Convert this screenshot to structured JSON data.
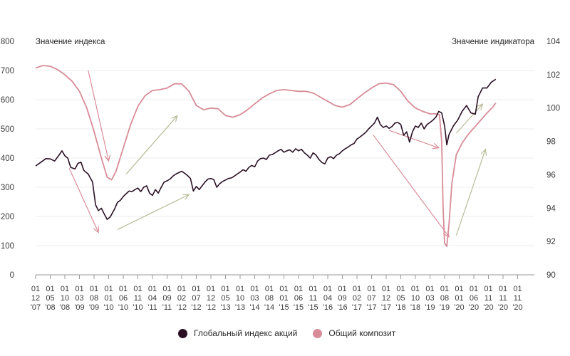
{
  "chart_data": {
    "type": "line",
    "left_axis": {
      "title": "Значение индекса",
      "ylim": [
        0,
        800
      ],
      "ticks": [
        "0",
        "100",
        "200",
        "300",
        "400",
        "500",
        "600",
        "700",
        "800"
      ]
    },
    "right_axis": {
      "title": "Значение индикатора",
      "ylim": [
        90,
        104
      ],
      "ticks": [
        "90",
        "92",
        "94",
        "96",
        "98",
        "100",
        "102",
        "104"
      ]
    },
    "x_tick_labels": [
      [
        "01",
        "12",
        "'07"
      ],
      [
        "01",
        "05",
        "'08"
      ],
      [
        "01",
        "10",
        "'08"
      ],
      [
        "01",
        "03",
        "'09"
      ],
      [
        "01",
        "08",
        "'09"
      ],
      [
        "01",
        "01",
        "'10"
      ],
      [
        "01",
        "06",
        "'10"
      ],
      [
        "01",
        "11",
        "'10"
      ],
      [
        "01",
        "04",
        "'11"
      ],
      [
        "01",
        "09",
        "'11"
      ],
      [
        "01",
        "02",
        "'12"
      ],
      [
        "01",
        "07",
        "'12"
      ],
      [
        "01",
        "12",
        "'12"
      ],
      [
        "01",
        "05",
        "'13"
      ],
      [
        "01",
        "10",
        "'13"
      ],
      [
        "01",
        "03",
        "'14"
      ],
      [
        "01",
        "08",
        "'14"
      ],
      [
        "01",
        "01",
        "'15"
      ],
      [
        "01",
        "06",
        "'15"
      ],
      [
        "01",
        "11",
        "'15"
      ],
      [
        "01",
        "04",
        "'16"
      ],
      [
        "01",
        "09",
        "'16"
      ],
      [
        "01",
        "02",
        "'17"
      ],
      [
        "01",
        "07",
        "'17"
      ],
      [
        "01",
        "12",
        "'17"
      ],
      [
        "01",
        "05",
        "'18"
      ],
      [
        "01",
        "10",
        "'18"
      ],
      [
        "01",
        "03",
        "'19"
      ],
      [
        "01",
        "08",
        "'19"
      ],
      [
        "01",
        "01",
        "'20"
      ],
      [
        "01",
        "06",
        "'20"
      ],
      [
        "01",
        "11",
        "'20"
      ],
      [
        "01",
        "11",
        "'20"
      ],
      [
        "01",
        "11",
        "'20"
      ]
    ],
    "grid": "horizontal",
    "legend_position": "bottom-center",
    "series": [
      {
        "name": "Глобальный индекс акций",
        "axis": "left",
        "color": "#2b1024",
        "points": [
          [
            0,
            373
          ],
          [
            0.4,
            387
          ],
          [
            0.7,
            398
          ],
          [
            1.0,
            397
          ],
          [
            1.3,
            390
          ],
          [
            1.6,
            410
          ],
          [
            1.8,
            425
          ],
          [
            2.0,
            408
          ],
          [
            2.2,
            400
          ],
          [
            2.4,
            368
          ],
          [
            2.7,
            363
          ],
          [
            2.9,
            382
          ],
          [
            3.1,
            386
          ],
          [
            3.3,
            358
          ],
          [
            3.6,
            345
          ],
          [
            3.9,
            318
          ],
          [
            4.1,
            240
          ],
          [
            4.3,
            220
          ],
          [
            4.5,
            228
          ],
          [
            4.7,
            208
          ],
          [
            4.9,
            190
          ],
          [
            5.1,
            198
          ],
          [
            5.4,
            225
          ],
          [
            5.6,
            248
          ],
          [
            5.8,
            255
          ],
          [
            6.0,
            268
          ],
          [
            6.2,
            278
          ],
          [
            6.4,
            287
          ],
          [
            6.6,
            285
          ],
          [
            6.8,
            292
          ],
          [
            7.0,
            297
          ],
          [
            7.2,
            285
          ],
          [
            7.4,
            300
          ],
          [
            7.6,
            305
          ],
          [
            7.8,
            280
          ],
          [
            8.0,
            272
          ],
          [
            8.2,
            292
          ],
          [
            8.4,
            280
          ],
          [
            8.6,
            300
          ],
          [
            8.8,
            318
          ],
          [
            9.0,
            322
          ],
          [
            9.2,
            328
          ],
          [
            9.4,
            338
          ],
          [
            9.6,
            345
          ],
          [
            9.8,
            350
          ],
          [
            10.0,
            355
          ],
          [
            10.2,
            348
          ],
          [
            10.4,
            340
          ],
          [
            10.6,
            330
          ],
          [
            10.8,
            287
          ],
          [
            11.0,
            303
          ],
          [
            11.2,
            292
          ],
          [
            11.4,
            305
          ],
          [
            11.6,
            318
          ],
          [
            11.8,
            328
          ],
          [
            12.0,
            330
          ],
          [
            12.2,
            326
          ],
          [
            12.4,
            300
          ],
          [
            12.6,
            312
          ],
          [
            12.8,
            320
          ],
          [
            13.0,
            325
          ],
          [
            13.2,
            330
          ],
          [
            13.4,
            332
          ],
          [
            13.6,
            338
          ],
          [
            13.8,
            345
          ],
          [
            14.0,
            352
          ],
          [
            14.2,
            360
          ],
          [
            14.4,
            355
          ],
          [
            14.6,
            368
          ],
          [
            14.8,
            375
          ],
          [
            15.0,
            370
          ],
          [
            15.2,
            390
          ],
          [
            15.4,
            398
          ],
          [
            15.6,
            400
          ],
          [
            15.8,
            395
          ],
          [
            16.0,
            410
          ],
          [
            16.2,
            412
          ],
          [
            16.4,
            418
          ],
          [
            16.6,
            425
          ],
          [
            16.8,
            430
          ],
          [
            17.0,
            420
          ],
          [
            17.2,
            425
          ],
          [
            17.4,
            428
          ],
          [
            17.6,
            420
          ],
          [
            17.8,
            432
          ],
          [
            18.0,
            425
          ],
          [
            18.2,
            430
          ],
          [
            18.4,
            418
          ],
          [
            18.6,
            410
          ],
          [
            18.8,
            400
          ],
          [
            19.0,
            418
          ],
          [
            19.2,
            410
          ],
          [
            19.4,
            395
          ],
          [
            19.6,
            385
          ],
          [
            19.8,
            380
          ],
          [
            20.0,
            400
          ],
          [
            20.2,
            405
          ],
          [
            20.4,
            398
          ],
          [
            20.6,
            410
          ],
          [
            20.8,
            415
          ],
          [
            21.0,
            425
          ],
          [
            21.2,
            432
          ],
          [
            21.4,
            438
          ],
          [
            21.6,
            445
          ],
          [
            21.8,
            450
          ],
          [
            22.0,
            465
          ],
          [
            22.2,
            472
          ],
          [
            22.4,
            480
          ],
          [
            22.6,
            488
          ],
          [
            22.8,
            500
          ],
          [
            23.0,
            510
          ],
          [
            23.2,
            520
          ],
          [
            23.4,
            540
          ],
          [
            23.6,
            515
          ],
          [
            23.8,
            505
          ],
          [
            24.0,
            510
          ],
          [
            24.2,
            502
          ],
          [
            24.4,
            508
          ],
          [
            24.6,
            520
          ],
          [
            24.8,
            522
          ],
          [
            25.0,
            515
          ],
          [
            25.2,
            478
          ],
          [
            25.4,
            490
          ],
          [
            25.6,
            455
          ],
          [
            25.8,
            490
          ],
          [
            26.0,
            510
          ],
          [
            26.2,
            505
          ],
          [
            26.4,
            520
          ],
          [
            26.6,
            500
          ],
          [
            26.8,
            515
          ],
          [
            27.0,
            522
          ],
          [
            27.2,
            530
          ],
          [
            27.4,
            540
          ],
          [
            27.6,
            560
          ],
          [
            27.8,
            555
          ],
          [
            28.0,
            510
          ],
          [
            28.15,
            445
          ],
          [
            28.3,
            480
          ],
          [
            28.6,
            510
          ],
          [
            28.9,
            530
          ],
          [
            29.2,
            560
          ],
          [
            29.5,
            580
          ],
          [
            29.8,
            555
          ],
          [
            30.1,
            550
          ],
          [
            30.3,
            610
          ],
          [
            30.6,
            640
          ],
          [
            30.9,
            640
          ],
          [
            31.2,
            660
          ],
          [
            31.5,
            670
          ]
        ]
      },
      {
        "name": "Общий композит",
        "axis": "right",
        "color": "#d88c98",
        "points": [
          [
            0,
            102.4
          ],
          [
            0.5,
            102.55
          ],
          [
            1.0,
            102.5
          ],
          [
            1.5,
            102.3
          ],
          [
            2.0,
            102.0
          ],
          [
            2.5,
            101.6
          ],
          [
            3.0,
            101.0
          ],
          [
            3.5,
            100.0
          ],
          [
            4.0,
            98.6
          ],
          [
            4.5,
            97.0
          ],
          [
            4.9,
            95.85
          ],
          [
            5.2,
            95.7
          ],
          [
            5.5,
            96.2
          ],
          [
            6.0,
            97.6
          ],
          [
            6.5,
            99.0
          ],
          [
            7.0,
            100.1
          ],
          [
            7.5,
            100.75
          ],
          [
            8.0,
            101.05
          ],
          [
            8.5,
            101.1
          ],
          [
            9.0,
            101.2
          ],
          [
            9.5,
            101.45
          ],
          [
            10.0,
            101.45
          ],
          [
            10.5,
            101.0
          ],
          [
            11.0,
            100.15
          ],
          [
            11.5,
            99.9
          ],
          [
            12.0,
            100.0
          ],
          [
            12.5,
            99.95
          ],
          [
            13.0,
            99.55
          ],
          [
            13.5,
            99.45
          ],
          [
            14.0,
            99.6
          ],
          [
            14.5,
            99.9
          ],
          [
            15.0,
            100.25
          ],
          [
            15.5,
            100.6
          ],
          [
            16.0,
            100.85
          ],
          [
            16.5,
            101.05
          ],
          [
            17.0,
            101.1
          ],
          [
            17.5,
            101.05
          ],
          [
            18.0,
            101.0
          ],
          [
            18.5,
            101.0
          ],
          [
            19.0,
            100.9
          ],
          [
            19.5,
            100.65
          ],
          [
            20.0,
            100.4
          ],
          [
            20.5,
            100.15
          ],
          [
            21.0,
            100.05
          ],
          [
            21.5,
            100.2
          ],
          [
            22.0,
            100.55
          ],
          [
            22.5,
            100.9
          ],
          [
            23.0,
            101.2
          ],
          [
            23.5,
            101.45
          ],
          [
            24.0,
            101.5
          ],
          [
            24.5,
            101.4
          ],
          [
            25.0,
            101.0
          ],
          [
            25.5,
            100.4
          ],
          [
            26.0,
            100.0
          ],
          [
            26.5,
            99.8
          ],
          [
            27.0,
            99.65
          ],
          [
            27.4,
            99.65
          ],
          [
            27.65,
            99.6
          ],
          [
            27.8,
            98.0
          ],
          [
            27.9,
            94.0
          ],
          [
            28.0,
            91.9
          ],
          [
            28.15,
            91.7
          ],
          [
            28.3,
            93.0
          ],
          [
            28.5,
            95.5
          ],
          [
            28.8,
            97.2
          ],
          [
            29.2,
            97.9
          ],
          [
            29.6,
            98.4
          ],
          [
            30.0,
            98.8
          ],
          [
            30.5,
            99.3
          ],
          [
            30.9,
            99.7
          ],
          [
            31.3,
            100.05
          ],
          [
            31.5,
            100.3
          ]
        ]
      }
    ],
    "annotation_arrows": [
      {
        "color": "#d88c98",
        "from": [
          3.6,
          700
        ],
        "to": [
          5.0,
          390
        ]
      },
      {
        "color": "#d88c98",
        "from": [
          2.3,
          365
        ],
        "to": [
          4.3,
          145
        ]
      },
      {
        "color": "#b8bc98",
        "from": [
          5.6,
          155
        ],
        "to": [
          10.5,
          275
        ]
      },
      {
        "color": "#b8bc98",
        "from": [
          6.2,
          345
        ],
        "to": [
          9.7,
          545
        ]
      },
      {
        "color": "#d88c98",
        "from": [
          24.2,
          495
        ],
        "to": [
          27.6,
          435
        ]
      },
      {
        "color": "#d88c98",
        "from": [
          23.1,
          480
        ],
        "to": [
          28.3,
          130
        ]
      },
      {
        "color": "#b8bc98",
        "from": [
          28.8,
          485
        ],
        "to": [
          30.6,
          585
        ]
      },
      {
        "color": "#b8bc98",
        "from": [
          28.8,
          135
        ],
        "to": [
          30.8,
          430
        ]
      }
    ]
  },
  "legend": {
    "items": [
      {
        "label": "Глобальный индекс акций",
        "color": "#2b1024"
      },
      {
        "label": "Общий композит",
        "color": "#d88c98"
      }
    ]
  }
}
